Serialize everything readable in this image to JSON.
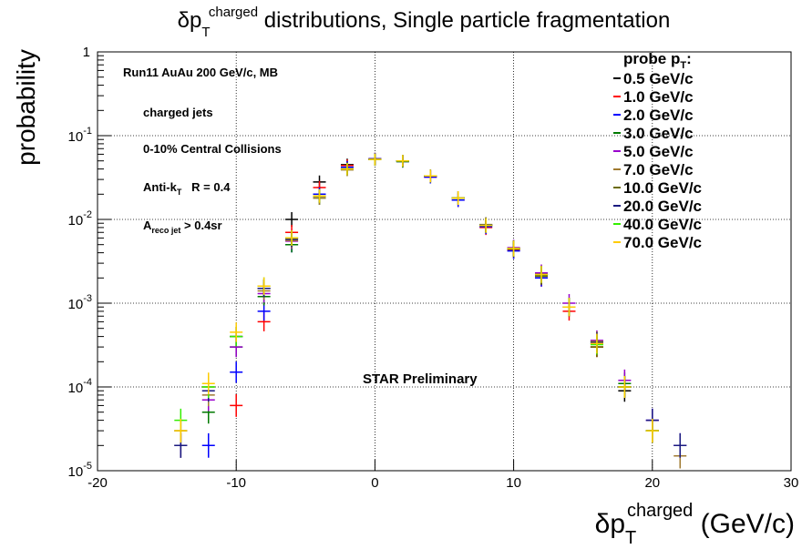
{
  "chart_data": {
    "type": "scatter",
    "title": {
      "symbol": "δp",
      "sub": "T",
      "sup": "charged",
      "rest": " distributions, Single particle fragmentation"
    },
    "x_label": {
      "symbol": "δp",
      "sub": "T",
      "sup": "charged",
      "rest": " (GeV/c)"
    },
    "y_label": "probability",
    "annotations": {
      "run": "Run11 AuAu 200 GeV/c, MB",
      "jets": "charged jets",
      "centrality": "0-10% Central Collisions",
      "algo": {
        "text": "Anti-k",
        "sub": "T",
        "rest": "   R = 0.4"
      },
      "area": {
        "text": "A",
        "sub": "reco jet",
        "rest": " > 0.4sr"
      },
      "prelim": "STAR Preliminary"
    },
    "legend_title": {
      "text": "probe p",
      "sub": "T",
      "rest": ":"
    },
    "log_y": true,
    "grid": true,
    "xlim": [
      -20,
      30
    ],
    "xticks": [
      -20,
      -10,
      0,
      10,
      20,
      30
    ],
    "ylim": [
      1e-05,
      1
    ],
    "yticks": [
      {
        "value": 1e-05,
        "label": "10",
        "exp": "-5"
      },
      {
        "value": 0.0001,
        "label": "10",
        "exp": "-4"
      },
      {
        "value": 0.001,
        "label": "10",
        "exp": "-3"
      },
      {
        "value": 0.01,
        "label": "10",
        "exp": "-2"
      },
      {
        "value": 0.1,
        "label": "10",
        "exp": "-1"
      },
      1
    ],
    "x": [
      -14,
      -12,
      -10,
      -8,
      -6,
      -4,
      -2,
      0,
      2,
      4,
      6,
      8,
      10,
      12,
      14,
      16,
      18,
      20,
      22
    ],
    "series": [
      {
        "name": "0.5 GeV/c",
        "color": "#000000",
        "values": [
          null,
          null,
          null,
          0.0015,
          0.01,
          0.028,
          0.045,
          0.053,
          0.05,
          0.033,
          0.018,
          0.0085,
          0.0045,
          0.0021,
          0.0009,
          0.0003,
          9e-05,
          3e-05,
          null
        ]
      },
      {
        "name": "1.0 GeV/c",
        "color": "#ff0000",
        "values": [
          null,
          null,
          6e-05,
          0.0006,
          0.007,
          0.024,
          0.044,
          0.053,
          0.05,
          0.032,
          0.017,
          0.008,
          0.0043,
          0.002,
          0.0008,
          0.0003,
          0.0001,
          3e-05,
          null
        ]
      },
      {
        "name": "2.0 GeV/c",
        "color": "#0000ff",
        "values": [
          null,
          2e-05,
          0.00015,
          0.0008,
          0.005,
          0.02,
          0.042,
          0.053,
          0.049,
          0.032,
          0.017,
          0.0082,
          0.0042,
          0.002,
          0.0009,
          0.00035,
          0.0001,
          4e-05,
          2e-05
        ]
      },
      {
        "name": "3.0 GeV/c",
        "color": "#007a00",
        "values": [
          2e-05,
          5e-05,
          0.0003,
          0.0012,
          0.005,
          0.018,
          0.04,
          0.052,
          0.049,
          0.033,
          0.018,
          0.0085,
          0.0045,
          0.0022,
          0.0009,
          0.00033,
          0.00011,
          3e-05,
          null
        ]
      },
      {
        "name": "5.0 GeV/c",
        "color": "#9900cc",
        "values": [
          2e-05,
          7e-05,
          0.0003,
          0.0013,
          0.0055,
          0.019,
          0.04,
          0.052,
          0.05,
          0.033,
          0.018,
          0.0086,
          0.0046,
          0.0023,
          0.001,
          0.00036,
          0.00012,
          4e-05,
          2e-05
        ]
      },
      {
        "name": "7.0 GeV/c",
        "color": "#a07a30",
        "values": [
          3e-05,
          8e-05,
          0.0004,
          0.0014,
          0.0056,
          0.018,
          0.039,
          0.052,
          0.05,
          0.033,
          0.018,
          0.0087,
          0.0045,
          0.0022,
          0.0009,
          0.00035,
          0.0001,
          3e-05,
          1.5e-05
        ]
      },
      {
        "name": "10.0 GeV/c",
        "color": "#6b6b00",
        "values": [
          3e-05,
          0.0001,
          0.0004,
          0.0015,
          0.006,
          0.019,
          0.04,
          0.052,
          0.05,
          0.033,
          0.018,
          0.0085,
          0.0044,
          0.0021,
          0.0009,
          0.0003,
          0.0001,
          3e-05,
          null
        ]
      },
      {
        "name": "20.0 GeV/c",
        "color": "#1a1a80",
        "values": [
          2e-05,
          9e-05,
          0.0004,
          0.0015,
          0.0058,
          0.019,
          0.04,
          0.052,
          0.05,
          0.033,
          0.018,
          0.0086,
          0.0045,
          0.0022,
          0.0009,
          0.00034,
          0.0001,
          4e-05,
          2e-05
        ]
      },
      {
        "name": "40.0 GeV/c",
        "color": "#33ee00",
        "values": [
          4e-05,
          0.0001,
          0.0004,
          0.0016,
          0.006,
          0.019,
          0.04,
          0.052,
          0.05,
          0.033,
          0.018,
          0.0085,
          0.0045,
          0.0022,
          0.0009,
          0.00032,
          0.0001,
          3e-05,
          null
        ]
      },
      {
        "name": "70.0 GeV/c",
        "color": "#ffcc00",
        "values": [
          3e-05,
          0.00011,
          0.00045,
          0.0016,
          0.006,
          0.019,
          0.04,
          0.052,
          0.05,
          0.033,
          0.018,
          0.0085,
          0.0045,
          0.0022,
          0.0009,
          0.00033,
          0.0001,
          3e-05,
          null
        ]
      }
    ]
  }
}
